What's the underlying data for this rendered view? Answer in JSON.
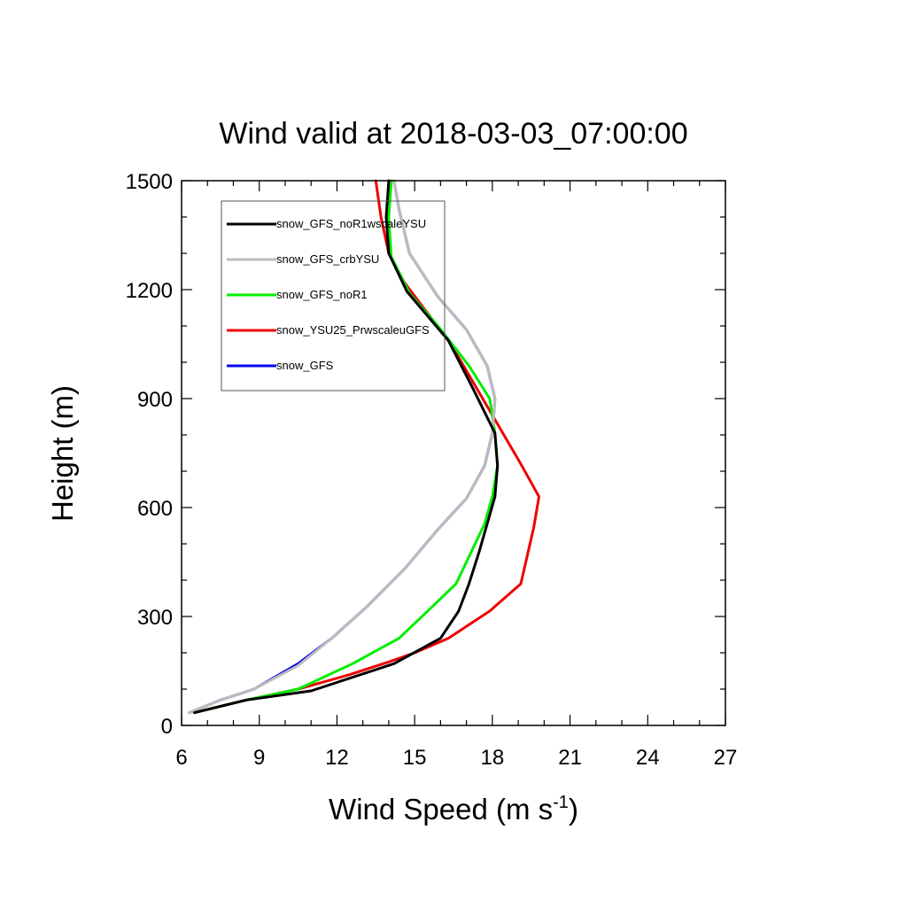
{
  "chart_data": {
    "type": "line",
    "title": "Wind valid at 2018-03-03_07:00:00",
    "xlabel": "Wind Speed (m s",
    "xlabel_sup": "-1",
    "xlabel_suffix": ")",
    "ylabel": "Height (m)",
    "xlim": [
      6,
      27
    ],
    "ylim": [
      0,
      1500
    ],
    "xticks": [
      6,
      9,
      12,
      15,
      18,
      21,
      24,
      27
    ],
    "yticks": [
      0,
      300,
      600,
      900,
      1200,
      1500
    ],
    "grid": false,
    "legend_position": "top-left",
    "series": [
      {
        "name": "snow_GFS_noR1wscaleYSU",
        "color": "#000000",
        "points": [
          [
            6.5,
            35
          ],
          [
            8.5,
            70
          ],
          [
            11,
            95
          ],
          [
            14.2,
            170
          ],
          [
            16,
            240
          ],
          [
            16.7,
            315
          ],
          [
            17.1,
            390
          ],
          [
            17.5,
            480
          ],
          [
            17.8,
            555
          ],
          [
            18.1,
            630
          ],
          [
            18.2,
            715
          ],
          [
            18.1,
            805
          ],
          [
            17.2,
            935
          ],
          [
            16.3,
            1060
          ],
          [
            14.7,
            1195
          ],
          [
            14.0,
            1300
          ],
          [
            13.9,
            1400
          ],
          [
            14.0,
            1500
          ]
        ]
      },
      {
        "name": "snow_GFS_crbYSU",
        "color": "#bcbcbc",
        "points": [
          [
            6.3,
            35
          ],
          [
            7.5,
            70
          ],
          [
            8.8,
            100
          ],
          [
            10.5,
            165
          ],
          [
            11.8,
            240
          ],
          [
            13.2,
            330
          ],
          [
            14.6,
            430
          ],
          [
            15.9,
            540
          ],
          [
            17.0,
            625
          ],
          [
            17.7,
            715
          ],
          [
            18.0,
            805
          ],
          [
            18.1,
            900
          ],
          [
            17.8,
            990
          ],
          [
            17.0,
            1090
          ],
          [
            15.9,
            1180
          ],
          [
            14.8,
            1300
          ],
          [
            14.4,
            1420
          ],
          [
            14.2,
            1500
          ]
        ]
      },
      {
        "name": "snow_GFS_noR1",
        "color": "#00ee00",
        "points": [
          [
            6.5,
            35
          ],
          [
            8.5,
            70
          ],
          [
            10.5,
            100
          ],
          [
            12.6,
            170
          ],
          [
            14.4,
            240
          ],
          [
            15.5,
            315
          ],
          [
            16.6,
            390
          ],
          [
            17.2,
            480
          ],
          [
            17.7,
            555
          ],
          [
            18.0,
            630
          ],
          [
            18.2,
            715
          ],
          [
            18.1,
            805
          ],
          [
            17.9,
            900
          ],
          [
            17.1,
            990
          ],
          [
            15.9,
            1100
          ],
          [
            14.8,
            1190
          ],
          [
            14.1,
            1290
          ],
          [
            14.0,
            1400
          ],
          [
            14.1,
            1500
          ]
        ]
      },
      {
        "name": "snow_YSU25_PrwscaleuGFS",
        "color": "#ee0000",
        "points": [
          [
            6.5,
            35
          ],
          [
            8.5,
            70
          ],
          [
            10.5,
            100
          ],
          [
            12.5,
            140
          ],
          [
            14.0,
            175
          ],
          [
            15.0,
            200
          ],
          [
            16.3,
            240
          ],
          [
            17.9,
            315
          ],
          [
            19.1,
            390
          ],
          [
            19.6,
            545
          ],
          [
            19.8,
            630
          ],
          [
            19.1,
            720
          ],
          [
            18.2,
            830
          ],
          [
            16.4,
            1050
          ],
          [
            14.6,
            1220
          ],
          [
            14.0,
            1300
          ],
          [
            13.7,
            1400
          ],
          [
            13.5,
            1500
          ]
        ]
      },
      {
        "name": "snow_GFS",
        "color": "#0000ee",
        "points": [
          [
            6.3,
            35
          ],
          [
            7.5,
            70
          ],
          [
            8.8,
            100
          ],
          [
            10.5,
            170
          ],
          [
            11.8,
            240
          ],
          [
            13.2,
            330
          ],
          [
            14.6,
            430
          ],
          [
            15.9,
            540
          ],
          [
            17.0,
            625
          ],
          [
            17.7,
            715
          ],
          [
            18.0,
            805
          ],
          [
            18.1,
            900
          ],
          [
            17.8,
            990
          ],
          [
            17.0,
            1090
          ],
          [
            15.9,
            1180
          ],
          [
            14.8,
            1300
          ],
          [
            14.4,
            1420
          ],
          [
            14.2,
            1500
          ]
        ]
      }
    ]
  }
}
